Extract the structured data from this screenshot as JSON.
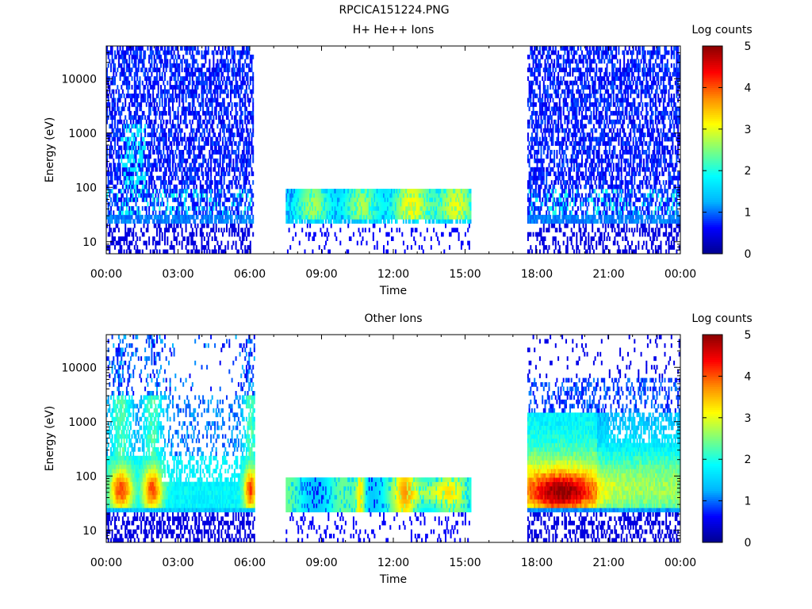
{
  "page": {
    "title": "RPCICA151224.PNG"
  },
  "colors": {
    "colormap": [
      "#00008f",
      "#0000ff",
      "#00b4ff",
      "#00ffff",
      "#7dff7d",
      "#ffff00",
      "#ff8c00",
      "#ff0000",
      "#8b0000"
    ],
    "axis": "#000000",
    "background": "#ffffff"
  },
  "chart_data": [
    {
      "type": "heatmap",
      "title": "H+ He++ Ions",
      "xlabel": "Time",
      "ylabel": "Energy (eV)",
      "xlim": [
        "00:00",
        "00:00 (+1 day)"
      ],
      "x_ticks": [
        "00:00",
        "03:00",
        "06:00",
        "09:00",
        "12:00",
        "15:00",
        "18:00",
        "21:00",
        "00:00"
      ],
      "ylim": [
        6,
        40000
      ],
      "y_scale": "log",
      "y_ticks": [
        "10",
        "100",
        "1000",
        "10000"
      ],
      "colorbar": {
        "label": "Log counts",
        "range": [
          0,
          5
        ],
        "ticks": [
          "0",
          "1",
          "2",
          "3",
          "4",
          "5"
        ]
      },
      "segments": [
        {
          "start_h": 0.0,
          "end_h": 6.15,
          "e_min": 6,
          "e_max": 40000,
          "note_level": "sparse 0.5-1 above 100 eV, 1.5-2 bands near 40-100 eV"
        },
        {
          "start_h": 7.5,
          "end_h": 15.25,
          "e_min": 6,
          "e_max": 100,
          "note_level": "2-3 band 30-100 eV, peaks ~3.3 near 12:30-14:30"
        },
        {
          "start_h": 17.6,
          "end_h": 23.95,
          "e_min": 6,
          "e_max": 40000,
          "note_level": "sparse 0.5-1 above 100 eV"
        }
      ]
    },
    {
      "type": "heatmap",
      "title": "Other Ions",
      "xlabel": "Time",
      "ylabel": "Energy (eV)",
      "xlim": [
        "00:00",
        "00:00 (+1 day)"
      ],
      "x_ticks": [
        "00:00",
        "03:00",
        "06:00",
        "09:00",
        "12:00",
        "15:00",
        "18:00",
        "21:00",
        "00:00"
      ],
      "ylim": [
        6,
        40000
      ],
      "y_scale": "log",
      "y_ticks": [
        "10",
        "100",
        "1000",
        "10000"
      ],
      "colorbar": {
        "label": "Log counts",
        "range": [
          0,
          5
        ],
        "ticks": [
          "0",
          "1",
          "2",
          "3",
          "4",
          "5"
        ]
      },
      "segments": [
        {
          "start_h": 0.0,
          "end_h": 6.2,
          "e_min": 6,
          "e_max": 40000,
          "note_level": "1.5-2 above 300 eV, peaks ~3.5-4 near 30-100 eV at 00:30-02:00"
        },
        {
          "start_h": 7.5,
          "end_h": 15.25,
          "e_min": 6,
          "e_max": 100,
          "note_level": "2-3 band 30-100 eV, peaks ~4 near 10:30 and 12:30-14:30"
        },
        {
          "start_h": 17.6,
          "end_h": 23.95,
          "e_min": 6,
          "e_max": 40000,
          "note_level": "broad 1.5-3 from 30-3000 eV, peak ~4.5 near 50 eV at 18:00-20:00"
        }
      ]
    }
  ]
}
